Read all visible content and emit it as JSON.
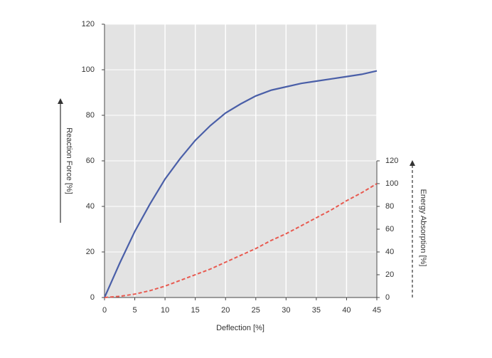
{
  "chart_data": {
    "type": "line",
    "x_label": "Deflection [%]",
    "y_label": "Reaction Force [%]",
    "y2_label": "Energy Absorption [%]",
    "x": [
      0,
      2.5,
      5,
      7.5,
      10,
      12.5,
      15,
      17.5,
      20,
      22.5,
      25,
      27.5,
      30,
      32.5,
      35,
      37.5,
      40,
      42.5,
      45
    ],
    "series": [
      {
        "color": "#4a5fa8",
        "dashed": false,
        "values": [
          0,
          15,
          29,
          41,
          52,
          61,
          69,
          75.5,
          81,
          85,
          88.5,
          91,
          92.5,
          94,
          95,
          96,
          97,
          98,
          99.5
        ]
      },
      {
        "color": "#e8594f",
        "dashed": true,
        "axis": "y2",
        "values": [
          0,
          1,
          3,
          6,
          10,
          15,
          20,
          25,
          31,
          37,
          43,
          50,
          56,
          63,
          70,
          77,
          85,
          92,
          100
        ]
      }
    ],
    "xlim": [
      0,
      45
    ],
    "xticks": [
      0,
      5,
      10,
      15,
      20,
      25,
      30,
      35,
      40,
      45
    ],
    "ylim": [
      0,
      120
    ],
    "yticks": [
      0,
      20,
      40,
      60,
      80,
      100,
      120
    ],
    "y2lim": [
      0,
      120
    ],
    "y2ticks": [
      0,
      20,
      40,
      60,
      80,
      100,
      120
    ],
    "grid": true
  }
}
